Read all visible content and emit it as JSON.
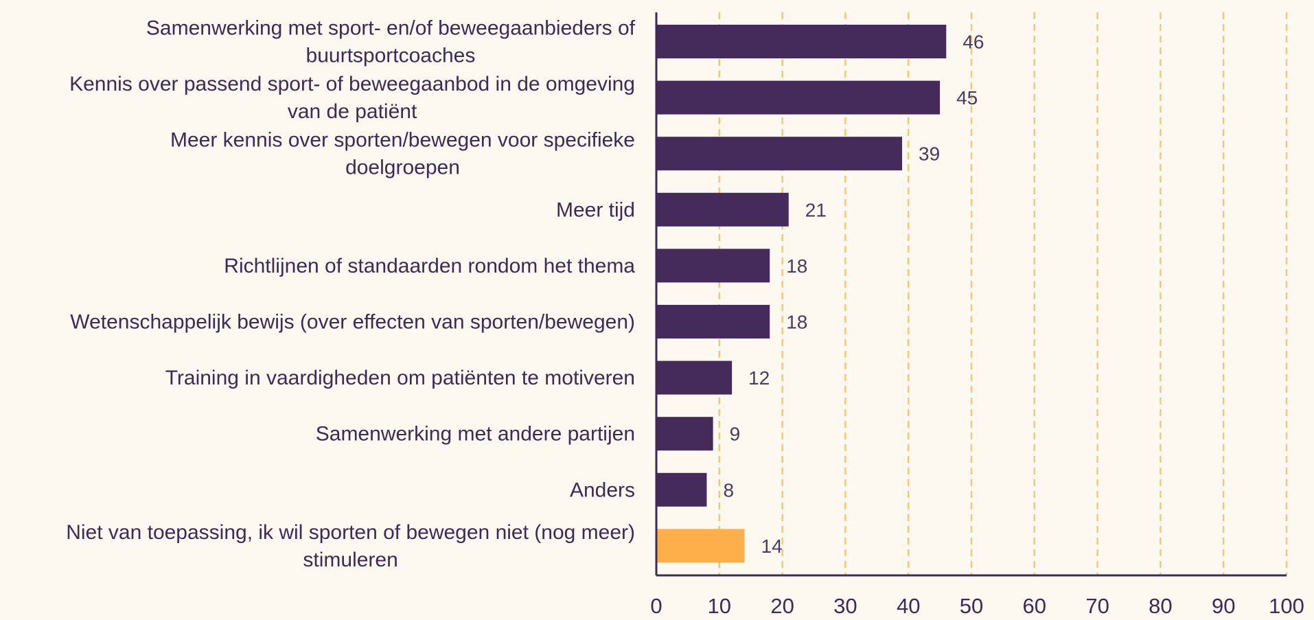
{
  "chart_data": {
    "type": "bar",
    "orientation": "horizontal",
    "categories": [
      "Samenwerking met sport- en/of beweegaanbieders of buurtsportcoaches",
      "Kennis over passend sport- of beweegaanbod in de omgeving van de patiënt",
      "Meer kennis over sporten/bewegen voor specifieke doelgroepen",
      "Meer tijd",
      "Richtlijnen of standaarden rondom het thema",
      "Wetenschappelijk bewijs (over effecten van sporten/bewegen)",
      "Training in vaardigheden om patiënten te motiveren",
      "Samenwerking met andere partijen",
      "Anders",
      "Niet van toepassing, ik wil sporten of bewegen niet (nog meer) stimuleren"
    ],
    "label_lines": [
      [
        "Samenwerking met sport- en/of beweegaanbieders of",
        "buurtsportcoaches"
      ],
      [
        "Kennis over passend sport- of beweegaanbod in de omgeving",
        "van de patiënt"
      ],
      [
        "Meer kennis over sporten/bewegen voor specifieke",
        "doelgroepen"
      ],
      [
        "Meer tijd"
      ],
      [
        "Richtlijnen of standaarden rondom het thema"
      ],
      [
        "Wetenschappelijk bewijs (over effecten van sporten/bewegen)"
      ],
      [
        "Training in vaardigheden om patiënten te motiveren"
      ],
      [
        "Samenwerking met andere partijen"
      ],
      [
        "Anders"
      ],
      [
        "Niet van toepassing, ik wil sporten of bewegen niet (nog meer)",
        "stimuleren"
      ]
    ],
    "values": [
      46,
      45,
      39,
      21,
      18,
      18,
      12,
      9,
      8,
      14
    ],
    "bar_colors": [
      "#452b5c",
      "#452b5c",
      "#452b5c",
      "#452b5c",
      "#452b5c",
      "#452b5c",
      "#452b5c",
      "#452b5c",
      "#452b5c",
      "#ffaf4a"
    ],
    "xlim": [
      0,
      100
    ],
    "xticks": [
      0,
      10,
      20,
      30,
      40,
      50,
      60,
      70,
      80,
      90,
      100
    ],
    "grid": "vertical dashed",
    "colors": {
      "background": "#fdf9f0",
      "bar_primary": "#452b5c",
      "bar_highlight": "#ffaf4a",
      "gridline": "#f5c878",
      "axis": "#3d2a55",
      "text": "#3d2a55",
      "value_text": "#4a3d5c"
    }
  }
}
